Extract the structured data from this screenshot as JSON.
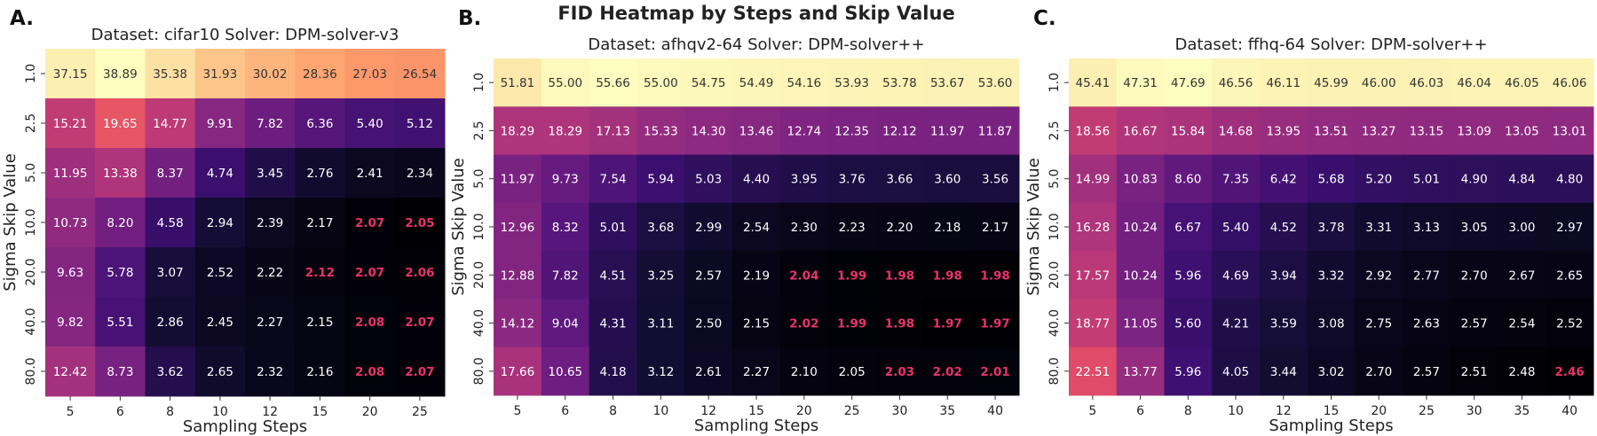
{
  "suptitle": "FID Heatmap by Steps and Skip Value",
  "highlight_color": "#e8336a",
  "colormap": "magma",
  "chart_data": [
    {
      "type": "heatmap",
      "panel_label": "A.",
      "title": "Dataset: cifar10 Solver: DPM-solver-v3",
      "xlabel": "Sampling Steps",
      "ylabel": "Sigma Skip Value",
      "x": [
        "5",
        "6",
        "8",
        "10",
        "12",
        "15",
        "20",
        "25"
      ],
      "y": [
        "1.0",
        "2.5",
        "5.0",
        "10.0",
        "20.0",
        "40.0",
        "80.0"
      ],
      "values": [
        [
          "37.15",
          "38.89",
          "35.38",
          "31.93",
          "30.02",
          "28.36",
          "27.03",
          "26.54"
        ],
        [
          "15.21",
          "19.65",
          "14.77",
          "9.91",
          "7.82",
          "6.36",
          "5.40",
          "5.12"
        ],
        [
          "11.95",
          "13.38",
          "8.37",
          "4.74",
          "3.45",
          "2.76",
          "2.41",
          "2.34"
        ],
        [
          "10.73",
          "8.20",
          "4.58",
          "2.94",
          "2.39",
          "2.17",
          "2.07",
          "2.05"
        ],
        [
          "9.63",
          "5.78",
          "3.07",
          "2.52",
          "2.22",
          "2.12",
          "2.07",
          "2.06"
        ],
        [
          "9.82",
          "5.51",
          "2.86",
          "2.45",
          "2.27",
          "2.15",
          "2.08",
          "2.07"
        ],
        [
          "12.42",
          "8.73",
          "3.62",
          "2.65",
          "2.32",
          "2.16",
          "2.08",
          "2.07"
        ]
      ],
      "highlighted": [
        [
          3,
          6
        ],
        [
          3,
          7
        ],
        [
          4,
          5
        ],
        [
          4,
          6
        ],
        [
          4,
          7
        ],
        [
          5,
          6
        ],
        [
          5,
          7
        ],
        [
          6,
          6
        ],
        [
          6,
          7
        ]
      ]
    },
    {
      "type": "heatmap",
      "panel_label": "B.",
      "title": "Dataset: afhqv2-64 Solver: DPM-solver++",
      "xlabel": "Sampling Steps",
      "ylabel": "Sigma Skip Value",
      "x": [
        "5",
        "6",
        "8",
        "10",
        "12",
        "15",
        "20",
        "25",
        "30",
        "35",
        "40"
      ],
      "y": [
        "1.0",
        "2.5",
        "5.0",
        "10.0",
        "20.0",
        "40.0",
        "80.0"
      ],
      "values": [
        [
          "51.81",
          "55.00",
          "55.66",
          "55.00",
          "54.75",
          "54.49",
          "54.16",
          "53.93",
          "53.78",
          "53.67",
          "53.60"
        ],
        [
          "18.29",
          "18.29",
          "17.13",
          "15.33",
          "14.30",
          "13.46",
          "12.74",
          "12.35",
          "12.12",
          "11.97",
          "11.87"
        ],
        [
          "11.97",
          "9.73",
          "7.54",
          "5.94",
          "5.03",
          "4.40",
          "3.95",
          "3.76",
          "3.66",
          "3.60",
          "3.56"
        ],
        [
          "12.96",
          "8.32",
          "5.01",
          "3.68",
          "2.99",
          "2.54",
          "2.30",
          "2.23",
          "2.20",
          "2.18",
          "2.17"
        ],
        [
          "12.88",
          "7.82",
          "4.51",
          "3.25",
          "2.57",
          "2.19",
          "2.04",
          "1.99",
          "1.98",
          "1.98",
          "1.98"
        ],
        [
          "14.12",
          "9.04",
          "4.31",
          "3.11",
          "2.50",
          "2.15",
          "2.02",
          "1.99",
          "1.98",
          "1.97",
          "1.97"
        ],
        [
          "17.66",
          "10.65",
          "4.18",
          "3.12",
          "2.61",
          "2.27",
          "2.10",
          "2.05",
          "2.03",
          "2.02",
          "2.01"
        ]
      ],
      "highlighted": [
        [
          4,
          6
        ],
        [
          4,
          7
        ],
        [
          4,
          8
        ],
        [
          4,
          9
        ],
        [
          4,
          10
        ],
        [
          5,
          6
        ],
        [
          5,
          7
        ],
        [
          5,
          8
        ],
        [
          5,
          9
        ],
        [
          5,
          10
        ],
        [
          6,
          8
        ],
        [
          6,
          9
        ],
        [
          6,
          10
        ]
      ]
    },
    {
      "type": "heatmap",
      "panel_label": "C.",
      "title": "Dataset: ffhq-64 Solver: DPM-solver++",
      "xlabel": "Sampling Steps",
      "ylabel": "Sigma Skip Value",
      "x": [
        "5",
        "6",
        "8",
        "10",
        "12",
        "15",
        "20",
        "25",
        "30",
        "35",
        "40"
      ],
      "y": [
        "1.0",
        "2.5",
        "5.0",
        "10.0",
        "20.0",
        "40.0",
        "80.0"
      ],
      "values": [
        [
          "45.41",
          "47.31",
          "47.69",
          "46.56",
          "46.11",
          "45.99",
          "46.00",
          "46.03",
          "46.04",
          "46.05",
          "46.06"
        ],
        [
          "18.56",
          "16.67",
          "15.84",
          "14.68",
          "13.95",
          "13.51",
          "13.27",
          "13.15",
          "13.09",
          "13.05",
          "13.01"
        ],
        [
          "14.99",
          "10.83",
          "8.60",
          "7.35",
          "6.42",
          "5.68",
          "5.20",
          "5.01",
          "4.90",
          "4.84",
          "4.80"
        ],
        [
          "16.28",
          "10.24",
          "6.67",
          "5.40",
          "4.52",
          "3.78",
          "3.31",
          "3.13",
          "3.05",
          "3.00",
          "2.97"
        ],
        [
          "17.57",
          "10.24",
          "5.96",
          "4.69",
          "3.94",
          "3.32",
          "2.92",
          "2.77",
          "2.70",
          "2.67",
          "2.65"
        ],
        [
          "18.77",
          "11.05",
          "5.60",
          "4.21",
          "3.59",
          "3.08",
          "2.75",
          "2.63",
          "2.57",
          "2.54",
          "2.52"
        ],
        [
          "22.51",
          "13.77",
          "5.96",
          "4.05",
          "3.44",
          "3.02",
          "2.70",
          "2.57",
          "2.51",
          "2.48",
          "2.46"
        ]
      ],
      "highlighted": [
        [
          6,
          10
        ]
      ]
    }
  ]
}
